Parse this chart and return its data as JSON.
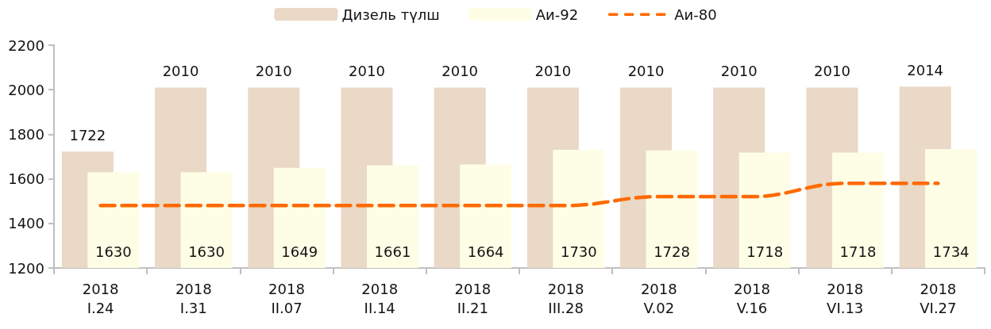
{
  "chart_data": {
    "type": "bar",
    "categories": [
      "2018\nI.24",
      "2018\nI.31",
      "2018\nII.07",
      "2018\nII.14",
      "2018\nII.21",
      "2018\nIII.28",
      "2018\nV.02",
      "2018\nV.16",
      "2018\nVI.13",
      "2018\nVI.27"
    ],
    "series": [
      {
        "name": "Дизель түлш",
        "color": "#ead9c6",
        "values": [
          1722,
          2010,
          2010,
          2010,
          2010,
          2010,
          2010,
          2010,
          2010,
          2014
        ],
        "data_labels": true
      },
      {
        "name": "Аи-92",
        "color": "#fefee6",
        "values": [
          1630,
          1630,
          1649,
          1661,
          1664,
          1730,
          1728,
          1718,
          1718,
          1734
        ],
        "data_labels": true
      },
      {
        "name": "Аи-80",
        "type": "line",
        "color": "#ff6a00",
        "line_style": "dashed",
        "marker": "none",
        "values": [
          1480,
          1480,
          1480,
          1480,
          1480,
          1480,
          1520,
          1520,
          1580,
          1580
        ]
      }
    ],
    "ylim": [
      1200,
      2200
    ],
    "yticks": [
      1200,
      1400,
      1600,
      1800,
      2000,
      2200
    ],
    "grid": false,
    "legend": "top"
  }
}
